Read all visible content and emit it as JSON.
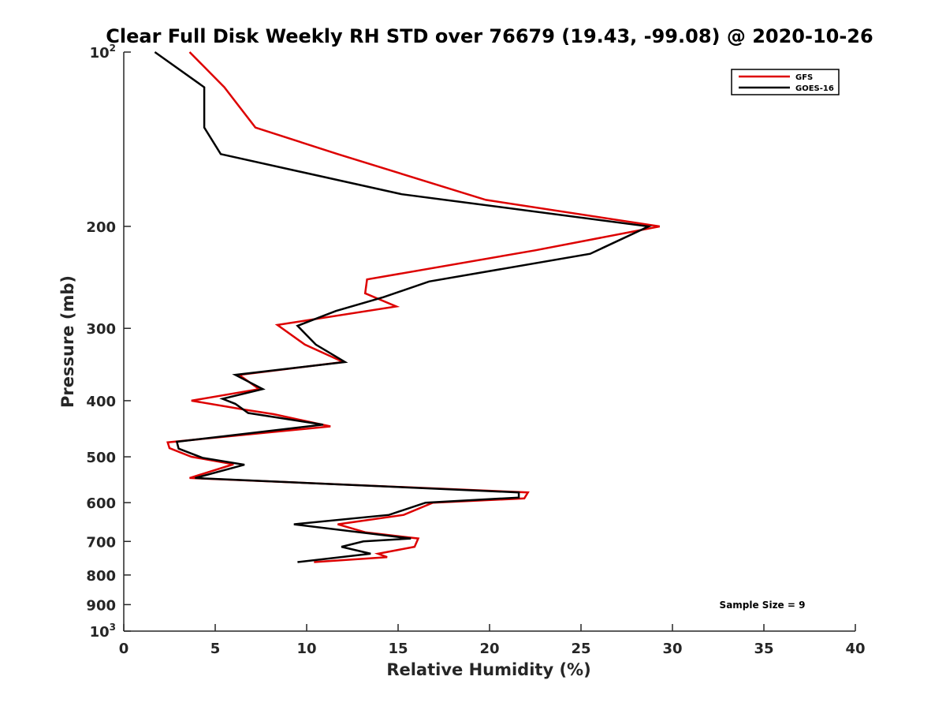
{
  "chart_data": {
    "type": "line",
    "title": "Clear Full Disk Weekly RH STD over 76679 (19.43, -99.08) @ 2020-10-26",
    "xlabel": "Relative Humidity (%)",
    "ylabel": "Pressure (mb)",
    "xlim": [
      0,
      40
    ],
    "ylim": [
      100,
      1000
    ],
    "y_scale": "log",
    "y_reversed": true,
    "grid": false,
    "legend_position": "top-right",
    "x_ticks": [
      "0",
      "5",
      "10",
      "15",
      "20",
      "25",
      "30",
      "35",
      "40"
    ],
    "y_ticks": [
      {
        "value": 100,
        "base": "10",
        "exp": "2"
      },
      {
        "value": 200,
        "label": "200"
      },
      {
        "value": 300,
        "label": "300"
      },
      {
        "value": 400,
        "label": "400"
      },
      {
        "value": 500,
        "label": "500"
      },
      {
        "value": 600,
        "label": "600"
      },
      {
        "value": 700,
        "label": "700"
      },
      {
        "value": 800,
        "label": "800"
      },
      {
        "value": 900,
        "label": "900"
      },
      {
        "value": 1000,
        "base": "10",
        "exp": "3"
      }
    ],
    "series": [
      {
        "name": "GFS",
        "color": "#dd0000",
        "x": [
          3.6,
          5.5,
          7.2,
          11.7,
          19.8,
          29.3,
          22.5,
          13.3,
          13.2,
          14.9,
          8.4,
          9.9,
          12.0,
          6.3,
          7.4,
          3.7,
          6.7,
          8.2,
          11.3,
          2.4,
          2.5,
          3.7,
          6.0,
          3.6,
          22.1,
          21.9,
          16.9,
          15.3,
          11.7,
          13.2,
          16.1,
          15.9,
          13.9,
          14.4,
          10.4
        ],
        "y": [
          100,
          115,
          135,
          150,
          180,
          200,
          220,
          247,
          261,
          275,
          296,
          320,
          343,
          361,
          382,
          400,
          415,
          422,
          443,
          472,
          483,
          500,
          515,
          544,
          576,
          590,
          600,
          630,
          654,
          675,
          692,
          715,
          735,
          745,
          760
        ]
      },
      {
        "name": "GOES-16",
        "color": "#000000",
        "x": [
          1.7,
          4.4,
          4.4,
          5.3,
          15.2,
          28.7,
          25.5,
          16.7,
          14.2,
          11.6,
          9.5,
          10.5,
          12.1,
          6.1,
          7.6,
          5.4,
          6.1,
          6.8,
          10.9,
          2.9,
          3.0,
          4.3,
          6.6,
          3.9,
          21.6,
          21.6,
          16.5,
          14.5,
          9.3,
          15.7,
          13.1,
          11.9,
          13.5,
          9.5
        ],
        "y": [
          100,
          115,
          135,
          150,
          176,
          200,
          223,
          249,
          265,
          280,
          297,
          320,
          343,
          361,
          382,
          397,
          405,
          420,
          440,
          471,
          484,
          502,
          516,
          544,
          576,
          588,
          600,
          630,
          654,
          692,
          700,
          715,
          735,
          760
        ]
      }
    ],
    "annotations": [
      {
        "text": "Sample Size = 9"
      }
    ]
  }
}
